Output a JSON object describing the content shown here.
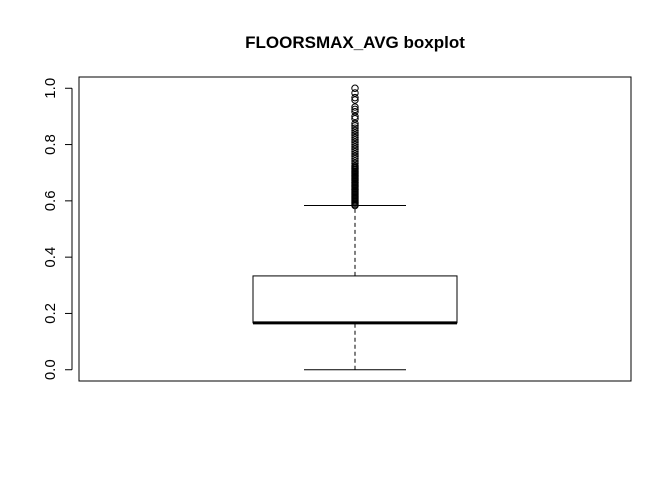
{
  "chart_data": {
    "type": "boxplot",
    "title": "FLOORSMAX_AVG boxplot",
    "xlabel": "",
    "ylabel": "",
    "ylim": [
      -0.04,
      1.04
    ],
    "y_ticks": [
      0.0,
      0.2,
      0.4,
      0.6,
      0.8,
      1.0
    ],
    "y_tick_labels": [
      "0.0",
      "0.2",
      "0.4",
      "0.6",
      "0.8",
      "1.0"
    ],
    "grid": false,
    "box": {
      "min": 0.0,
      "q1": 0.1667,
      "median": 0.1667,
      "q3": 0.3333,
      "max": 0.5833
    },
    "outliers": [
      0.5833,
      0.5869,
      0.5917,
      0.5958,
      0.6,
      0.6042,
      0.6083,
      0.6125,
      0.6167,
      0.6208,
      0.625,
      0.6292,
      0.6333,
      0.6375,
      0.6417,
      0.6458,
      0.65,
      0.6542,
      0.6583,
      0.6625,
      0.6667,
      0.6708,
      0.675,
      0.6792,
      0.6833,
      0.6875,
      0.6917,
      0.6958,
      0.7,
      0.7042,
      0.7083,
      0.7125,
      0.7167,
      0.7208,
      0.725,
      0.7333,
      0.7417,
      0.75,
      0.7583,
      0.7667,
      0.775,
      0.7833,
      0.7917,
      0.8,
      0.8083,
      0.8167,
      0.825,
      0.8333,
      0.8417,
      0.85,
      0.8583,
      0.8667,
      0.875,
      0.8917,
      0.9,
      0.9167,
      0.925,
      0.9333,
      0.9583,
      0.9667,
      0.9833,
      1.0
    ],
    "colors": {
      "stroke": "#000000",
      "fill": "#ffffff"
    }
  }
}
